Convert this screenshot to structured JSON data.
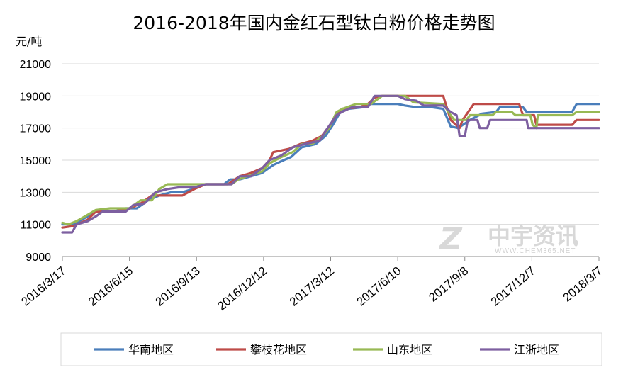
{
  "chart_data": {
    "type": "line",
    "title": "2016-2018年国内金红石型钛白粉价格走势图",
    "ylabel": "元/吨",
    "xlabel": "",
    "ylim": [
      9000,
      21000
    ],
    "yticks": [
      9000,
      11000,
      13000,
      15000,
      17000,
      19000,
      21000
    ],
    "xlim": [
      "2016-03-17",
      "2018-03-07"
    ],
    "xticks": [
      "2016/3/17",
      "2016/6/15",
      "2016/9/13",
      "2016/12/12",
      "2017/3/12",
      "2017/6/10",
      "2017/9/8",
      "2017/12/7",
      "2018/3/7"
    ],
    "xtick_dates": [
      "2016-03-17",
      "2016-06-15",
      "2016-09-13",
      "2016-12-12",
      "2017-03-12",
      "2017-06-10",
      "2017-09-08",
      "2017-12-07",
      "2018-03-07"
    ],
    "grid": "horizontal",
    "legend": "bottom",
    "series": [
      {
        "name": "华南地区",
        "color": "#4a7ebb",
        "points": [
          [
            "2016-03-17",
            11000
          ],
          [
            "2016-04-01",
            11000
          ],
          [
            "2016-04-20",
            11500
          ],
          [
            "2016-05-01",
            11800
          ],
          [
            "2016-05-25",
            11800
          ],
          [
            "2016-06-10",
            12000
          ],
          [
            "2016-06-25",
            12000
          ],
          [
            "2016-07-10",
            12500
          ],
          [
            "2016-07-25",
            12800
          ],
          [
            "2016-08-10",
            13000
          ],
          [
            "2016-08-25",
            13000
          ],
          [
            "2016-09-08",
            13200
          ],
          [
            "2016-09-25",
            13500
          ],
          [
            "2016-10-20",
            13500
          ],
          [
            "2016-10-28",
            13800
          ],
          [
            "2016-11-10",
            13800
          ],
          [
            "2016-11-25",
            14000
          ],
          [
            "2016-12-10",
            14200
          ],
          [
            "2016-12-25",
            14700
          ],
          [
            "2017-01-08",
            15000
          ],
          [
            "2017-01-18",
            15200
          ],
          [
            "2017-02-01",
            15800
          ],
          [
            "2017-02-20",
            16000
          ],
          [
            "2017-03-05",
            16500
          ],
          [
            "2017-03-15",
            17200
          ],
          [
            "2017-03-25",
            18000
          ],
          [
            "2017-04-05",
            18200
          ],
          [
            "2017-04-25",
            18300
          ],
          [
            "2017-05-05",
            18500
          ],
          [
            "2017-06-10",
            18500
          ],
          [
            "2017-06-20",
            18400
          ],
          [
            "2017-07-05",
            18300
          ],
          [
            "2017-07-25",
            18300
          ],
          [
            "2017-08-10",
            18200
          ],
          [
            "2017-08-20",
            17100
          ],
          [
            "2017-08-30",
            17000
          ],
          [
            "2017-09-15",
            17500
          ],
          [
            "2017-10-01",
            17900
          ],
          [
            "2017-10-20",
            18000
          ],
          [
            "2017-10-25",
            18300
          ],
          [
            "2017-11-05",
            18300
          ],
          [
            "2017-11-25",
            18300
          ],
          [
            "2017-11-30",
            18000
          ],
          [
            "2017-12-25",
            18000
          ],
          [
            "2018-01-30",
            18000
          ],
          [
            "2018-02-05",
            18500
          ],
          [
            "2018-03-07",
            18500
          ]
        ]
      },
      {
        "name": "攀枝花地区",
        "color": "#be4b48",
        "points": [
          [
            "2016-03-17",
            10800
          ],
          [
            "2016-04-01",
            10900
          ],
          [
            "2016-04-20",
            11300
          ],
          [
            "2016-05-01",
            11800
          ],
          [
            "2016-05-25",
            11800
          ],
          [
            "2016-06-15",
            12000
          ],
          [
            "2016-06-30",
            12300
          ],
          [
            "2016-07-15",
            12800
          ],
          [
            "2016-08-10",
            12800
          ],
          [
            "2016-08-25",
            12800
          ],
          [
            "2016-09-10",
            13200
          ],
          [
            "2016-09-25",
            13500
          ],
          [
            "2016-10-25",
            13500
          ],
          [
            "2016-11-10",
            14000
          ],
          [
            "2016-11-25",
            14200
          ],
          [
            "2016-12-10",
            14500
          ],
          [
            "2016-12-20",
            15000
          ],
          [
            "2016-12-25",
            15500
          ],
          [
            "2017-01-15",
            15700
          ],
          [
            "2017-01-30",
            16000
          ],
          [
            "2017-02-15",
            16200
          ],
          [
            "2017-02-28",
            16500
          ],
          [
            "2017-03-10",
            17100
          ],
          [
            "2017-03-20",
            17800
          ],
          [
            "2017-03-27",
            18200
          ],
          [
            "2017-04-20",
            18300
          ],
          [
            "2017-05-01",
            18500
          ],
          [
            "2017-05-10",
            18900
          ],
          [
            "2017-05-20",
            19000
          ],
          [
            "2017-08-10",
            19000
          ],
          [
            "2017-08-20",
            17500
          ],
          [
            "2017-09-01",
            17000
          ],
          [
            "2017-09-05",
            17500
          ],
          [
            "2017-09-20",
            18500
          ],
          [
            "2017-11-20",
            18500
          ],
          [
            "2017-11-25",
            17800
          ],
          [
            "2017-12-10",
            17800
          ],
          [
            "2017-12-13",
            17200
          ],
          [
            "2018-01-30",
            17200
          ],
          [
            "2018-02-05",
            17500
          ],
          [
            "2018-03-07",
            17500
          ]
        ]
      },
      {
        "name": "山东地区",
        "color": "#98b954",
        "points": [
          [
            "2016-03-17",
            11100
          ],
          [
            "2016-03-25",
            11000
          ],
          [
            "2016-04-05",
            11200
          ],
          [
            "2016-04-20",
            11600
          ],
          [
            "2016-05-01",
            11900
          ],
          [
            "2016-05-20",
            12000
          ],
          [
            "2016-06-15",
            12000
          ],
          [
            "2016-06-30",
            12500
          ],
          [
            "2016-07-15",
            12500
          ],
          [
            "2016-07-25",
            13200
          ],
          [
            "2016-08-05",
            13500
          ],
          [
            "2016-09-20",
            13500
          ],
          [
            "2016-10-30",
            13500
          ],
          [
            "2016-11-08",
            13800
          ],
          [
            "2016-11-20",
            14000
          ],
          [
            "2016-12-10",
            14300
          ],
          [
            "2016-12-20",
            14800
          ],
          [
            "2017-01-05",
            15200
          ],
          [
            "2017-01-20",
            15500
          ],
          [
            "2017-02-01",
            16000
          ],
          [
            "2017-02-15",
            16000
          ],
          [
            "2017-03-01",
            16500
          ],
          [
            "2017-03-10",
            17000
          ],
          [
            "2017-03-20",
            18000
          ],
          [
            "2017-03-28",
            18200
          ],
          [
            "2017-04-15",
            18500
          ],
          [
            "2017-05-05",
            18500
          ],
          [
            "2017-05-20",
            19000
          ],
          [
            "2017-06-20",
            19000
          ],
          [
            "2017-07-01",
            18600
          ],
          [
            "2017-08-10",
            18500
          ],
          [
            "2017-08-20",
            17800
          ],
          [
            "2017-08-25",
            17500
          ],
          [
            "2017-09-10",
            17500
          ],
          [
            "2017-09-15",
            17800
          ],
          [
            "2017-10-15",
            17800
          ],
          [
            "2017-10-20",
            18000
          ],
          [
            "2017-11-10",
            18000
          ],
          [
            "2017-11-15",
            17800
          ],
          [
            "2017-12-05",
            17800
          ],
          [
            "2017-12-08",
            17200
          ],
          [
            "2017-12-13",
            17000
          ],
          [
            "2017-12-15",
            17800
          ],
          [
            "2017-12-20",
            17800
          ],
          [
            "2018-01-30",
            17800
          ],
          [
            "2018-02-05",
            18000
          ],
          [
            "2018-03-07",
            18000
          ]
        ]
      },
      {
        "name": "江浙地区",
        "color": "#7d5fa0",
        "points": [
          [
            "2016-03-17",
            10500
          ],
          [
            "2016-03-30",
            10500
          ],
          [
            "2016-04-05",
            11000
          ],
          [
            "2016-04-20",
            11200
          ],
          [
            "2016-05-01",
            11500
          ],
          [
            "2016-05-10",
            11800
          ],
          [
            "2016-06-10",
            11800
          ],
          [
            "2016-06-20",
            12200
          ],
          [
            "2016-07-05",
            12300
          ],
          [
            "2016-07-20",
            13000
          ],
          [
            "2016-08-05",
            13200
          ],
          [
            "2016-08-20",
            13300
          ],
          [
            "2016-09-10",
            13300
          ],
          [
            "2016-09-25",
            13500
          ],
          [
            "2016-10-30",
            13500
          ],
          [
            "2016-11-10",
            14000
          ],
          [
            "2016-11-25",
            14000
          ],
          [
            "2016-12-10",
            14500
          ],
          [
            "2016-12-20",
            15000
          ],
          [
            "2017-01-05",
            15300
          ],
          [
            "2017-01-20",
            15800
          ],
          [
            "2017-02-05",
            16000
          ],
          [
            "2017-02-25",
            16200
          ],
          [
            "2017-03-05",
            16800
          ],
          [
            "2017-03-20",
            17800
          ],
          [
            "2017-03-27",
            18000
          ],
          [
            "2017-04-10",
            18300
          ],
          [
            "2017-05-01",
            18300
          ],
          [
            "2017-05-10",
            19000
          ],
          [
            "2017-06-10",
            19000
          ],
          [
            "2017-06-20",
            18800
          ],
          [
            "2017-07-05",
            18700
          ],
          [
            "2017-07-15",
            18400
          ],
          [
            "2017-08-10",
            18400
          ],
          [
            "2017-08-20",
            18000
          ],
          [
            "2017-08-28",
            17800
          ],
          [
            "2017-09-01",
            16500
          ],
          [
            "2017-09-08",
            16500
          ],
          [
            "2017-09-12",
            17500
          ],
          [
            "2017-09-25",
            17500
          ],
          [
            "2017-09-28",
            17000
          ],
          [
            "2017-10-08",
            17000
          ],
          [
            "2017-10-12",
            17500
          ],
          [
            "2017-11-30",
            17500
          ],
          [
            "2017-12-02",
            17000
          ],
          [
            "2018-03-07",
            17000
          ]
        ]
      }
    ]
  },
  "watermark": {
    "mark": "Z",
    "text": "中宇资讯",
    "url": "WWW.CHEM365.NET"
  }
}
